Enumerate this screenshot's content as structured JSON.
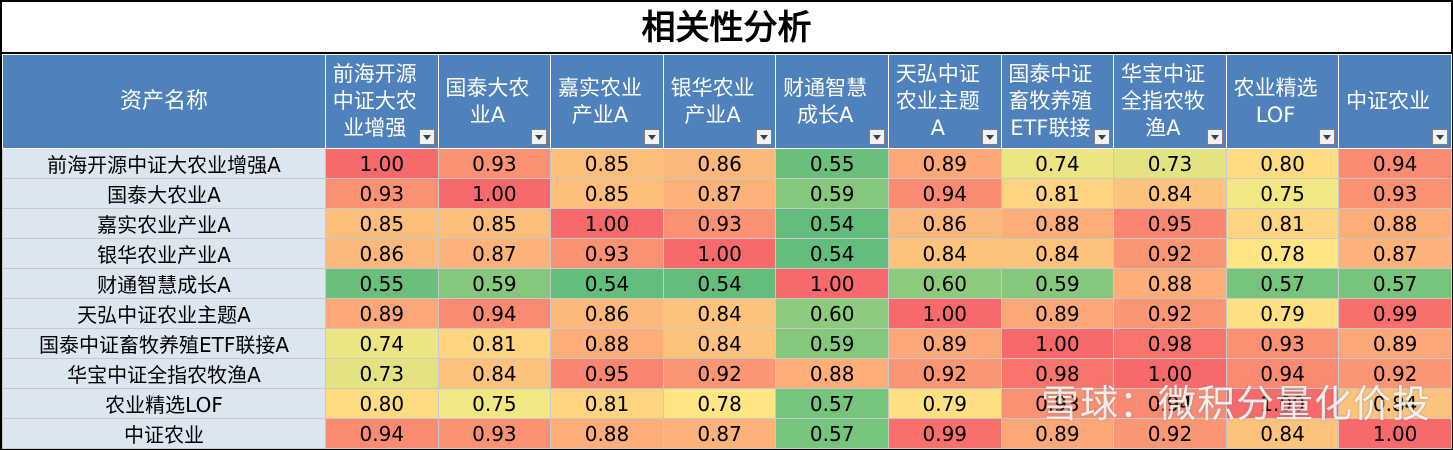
{
  "title": "相关性分析",
  "header_first": "资产名称",
  "watermark": "雪球：微积分量化价投",
  "colors": {
    "header_bg": "#4f81bd",
    "rowname_bg": "#dce6f1",
    "scale_low": "#63be7b",
    "scale_mid": "#ffeb84",
    "scale_high": "#f8696b"
  },
  "chart_data": {
    "type": "heatmap",
    "title": "相关性分析",
    "x_labels": [
      "前海开源中证大农业增强",
      "国泰大农业A",
      "嘉实农业产业A",
      "银华农业产业A",
      "财通智慧成长A",
      "天弘中证农业主题A",
      "国泰中证畜牧养殖ETF联接",
      "华宝中证全指农牧渔A",
      "农业精选LOF",
      "中证农业"
    ],
    "y_labels": [
      "前海开源中证大农业增强A",
      "国泰大农业A",
      "嘉实农业产业A",
      "银华农业产业A",
      "财通智慧成长A",
      "天弘中证农业主题A",
      "国泰中证畜牧养殖ETF联接A",
      "华宝中证全指农牧渔A",
      "农业精选LOF",
      "中证农业"
    ],
    "values": [
      [
        1.0,
        0.93,
        0.85,
        0.86,
        0.55,
        0.89,
        0.74,
        0.73,
        0.8,
        0.94
      ],
      [
        0.93,
        1.0,
        0.85,
        0.87,
        0.59,
        0.94,
        0.81,
        0.84,
        0.75,
        0.93
      ],
      [
        0.85,
        0.85,
        1.0,
        0.93,
        0.54,
        0.86,
        0.88,
        0.95,
        0.81,
        0.88
      ],
      [
        0.86,
        0.87,
        0.93,
        1.0,
        0.54,
        0.84,
        0.84,
        0.92,
        0.78,
        0.87
      ],
      [
        0.55,
        0.59,
        0.54,
        0.54,
        1.0,
        0.6,
        0.59,
        0.88,
        0.57,
        0.57
      ],
      [
        0.89,
        0.94,
        0.86,
        0.84,
        0.6,
        1.0,
        0.89,
        0.92,
        0.79,
        0.99
      ],
      [
        0.74,
        0.81,
        0.88,
        0.84,
        0.59,
        0.89,
        1.0,
        0.98,
        0.93,
        0.89
      ],
      [
        0.73,
        0.84,
        0.95,
        0.92,
        0.88,
        0.92,
        0.98,
        1.0,
        0.94,
        0.92
      ],
      [
        0.8,
        0.75,
        0.81,
        0.78,
        0.57,
        0.79,
        0.93,
        0.94,
        1.0,
        0.84
      ],
      [
        0.94,
        0.93,
        0.88,
        0.87,
        0.57,
        0.99,
        0.89,
        0.92,
        0.84,
        1.0
      ]
    ]
  }
}
